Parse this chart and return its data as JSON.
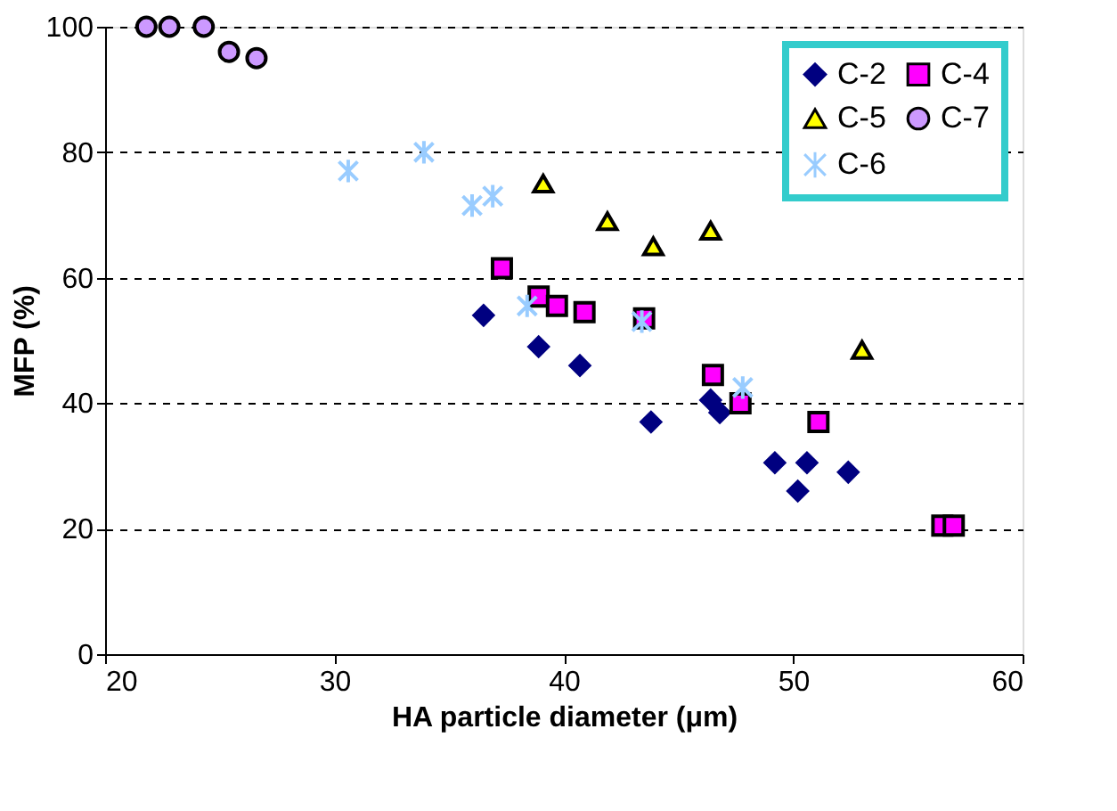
{
  "chart_data": {
    "type": "scatter",
    "xlabel": "HA particle diameter (μm)",
    "ylabel": "MFP (%)",
    "xlim": [
      20,
      60
    ],
    "xticks": [
      20,
      30,
      40,
      50,
      60
    ],
    "ylim": [
      0,
      100
    ],
    "yticks": [
      0,
      20,
      40,
      60,
      80,
      100
    ],
    "grid": "y",
    "legend": "top right",
    "series": [
      {
        "name": "C-2",
        "color": "#000080",
        "marker": "diamond",
        "x": [
          36.5,
          38.9,
          40.7,
          43.8,
          46.4,
          46.8,
          49.2,
          50.6,
          50.2,
          52.4
        ],
        "values": [
          54,
          49,
          46,
          37,
          40.5,
          38.5,
          30.5,
          30.5,
          26,
          29
        ]
      },
      {
        "name": "C-4",
        "color": "#ff00ff",
        "marker": "square",
        "x": [
          37.3,
          38.9,
          39.7,
          40.9,
          43.5,
          46.5,
          47.7,
          51.1,
          56.5,
          57
        ],
        "values": [
          61.5,
          57,
          55.5,
          54.5,
          53.5,
          44.5,
          40,
          37,
          20.5,
          20.5
        ]
      },
      {
        "name": "C-5",
        "color": "#ffff00",
        "marker": "triangle",
        "x": [
          39.1,
          41.9,
          43.9,
          46.4,
          53
        ],
        "values": [
          75,
          69,
          65,
          67.5,
          48.5
        ]
      },
      {
        "name": "C-7",
        "color": "#cc99ff",
        "marker": "circle",
        "x": [
          21.8,
          22.8,
          24.3,
          25.4,
          26.6
        ],
        "values": [
          100,
          100,
          100,
          96,
          95
        ]
      },
      {
        "name": "C-6",
        "color": "#99ccff",
        "marker": "cross",
        "x": [
          30.6,
          33.9,
          36,
          36.9,
          38.4,
          43.4,
          47.8
        ],
        "values": [
          77,
          80,
          71.5,
          73,
          55.5,
          53,
          42.5
        ]
      }
    ]
  }
}
